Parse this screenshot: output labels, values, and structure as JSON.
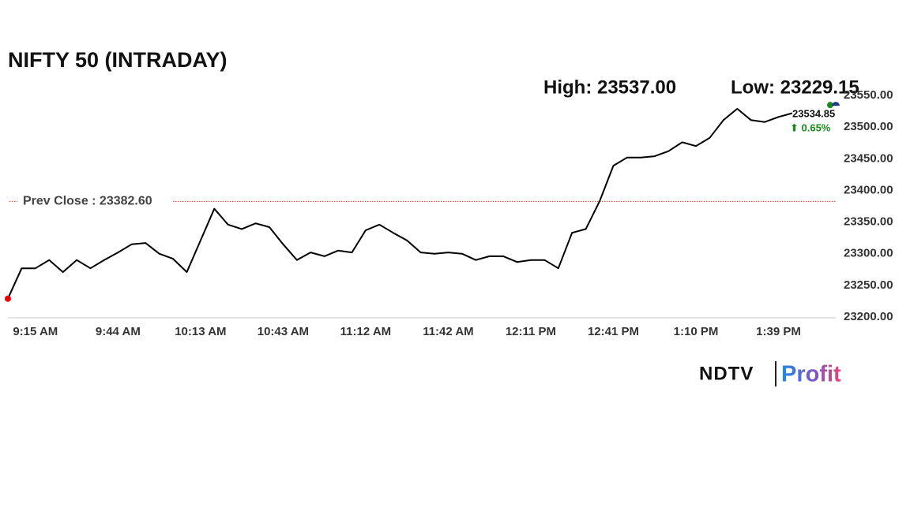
{
  "chart_data": {
    "type": "line",
    "title": "NIFTY 50 (INTRADAY)",
    "high_label": "High: 23537.00",
    "low_label": "Low: 23229.15",
    "categories": [
      null,
      null,
      "9:15 AM",
      null,
      null,
      null,
      null,
      null,
      "9:44 AM",
      null,
      null,
      null,
      null,
      null,
      "10:13 AM",
      null,
      null,
      null,
      null,
      null,
      "10:43 AM",
      null,
      null,
      null,
      null,
      null,
      "11:12 AM",
      null,
      null,
      null,
      null,
      null,
      "11:42 AM",
      null,
      null,
      null,
      null,
      null,
      "12:11 PM",
      null,
      null,
      null,
      null,
      null,
      "12:41 PM",
      null,
      null,
      null,
      null,
      null,
      "1:10 PM",
      null,
      null,
      null,
      null,
      null,
      "1:39 PM",
      null
    ],
    "series": [
      {
        "color": "#000000",
        "values": [
          23229,
          23277,
          23277,
          23290,
          23271,
          23290,
          23277,
          23290,
          23302,
          23315,
          23317,
          23300,
          23292,
          23271,
          23321,
          23371,
          23346,
          23339,
          23348,
          23342,
          23315,
          23290,
          23302,
          23296,
          23305,
          23302,
          23337,
          23346,
          23333,
          23321,
          23302,
          23300,
          23302,
          23300,
          23290,
          23296,
          23296,
          23287,
          23290,
          23290,
          23277,
          23333,
          23339,
          23383,
          23439,
          23452,
          23452,
          23454,
          23462,
          23476,
          23470,
          23483,
          23511,
          23529,
          23511,
          23508,
          23516,
          23522
        ]
      }
    ],
    "ylim": [
      23200,
      23550
    ],
    "yticks": [
      {
        "value": 23200,
        "label": "23200.00"
      },
      {
        "value": 23250,
        "label": "23250.00"
      },
      {
        "value": 23300,
        "label": "23300.00"
      },
      {
        "value": 23350,
        "label": "23350.00"
      },
      {
        "value": 23400,
        "label": "23400.00"
      },
      {
        "value": 23450,
        "label": "23450.00"
      },
      {
        "value": 23500,
        "label": "23500.00"
      },
      {
        "value": 23550,
        "label": "23550.00"
      }
    ],
    "grid": false,
    "prev_close": {
      "value": 23382.6,
      "label": "Prev Close : 23382.60",
      "color": "#e53935"
    },
    "last_price": {
      "value": 23534.85,
      "label": "23534.85"
    },
    "change_label": "⬆ 0.65%",
    "change_color": "#1b8a1b"
  },
  "logo": {
    "brand": "NDTV",
    "product": "Profit"
  }
}
